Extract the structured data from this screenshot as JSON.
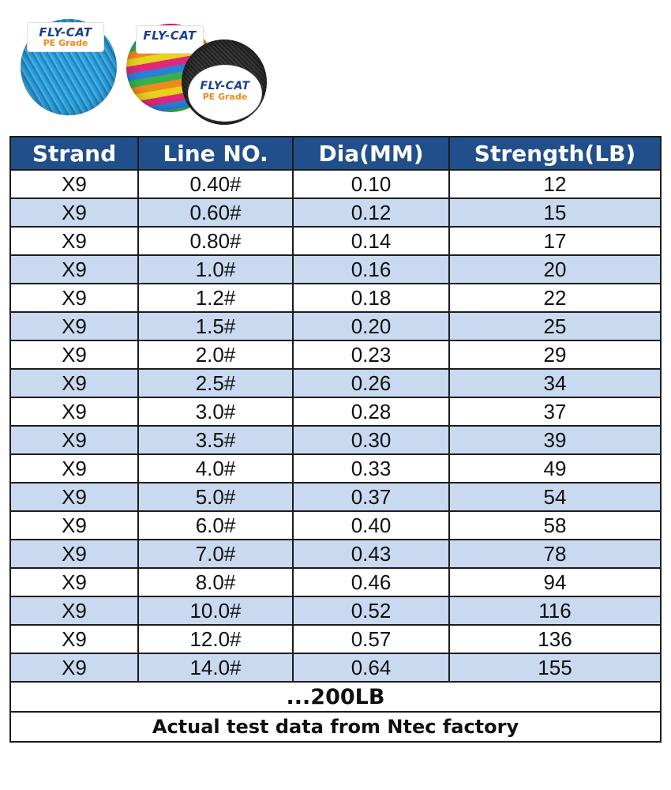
{
  "products": {
    "brand": "FLY-CAT",
    "grade": "PE Grade",
    "spools": [
      "blue-spool-icon",
      "multicolor-spool-icon",
      "black-spool-icon"
    ]
  },
  "table": {
    "headers": [
      "Strand",
      "Line NO.",
      "Dia(MM)",
      "Strength(LB)"
    ],
    "rows": [
      [
        "X9",
        "0.40#",
        "0.10",
        "12"
      ],
      [
        "X9",
        "0.60#",
        "0.12",
        "15"
      ],
      [
        "X9",
        "0.80#",
        "0.14",
        "17"
      ],
      [
        "X9",
        "1.0#",
        "0.16",
        "20"
      ],
      [
        "X9",
        "1.2#",
        "0.18",
        "22"
      ],
      [
        "X9",
        "1.5#",
        "0.20",
        "25"
      ],
      [
        "X9",
        "2.0#",
        "0.23",
        "29"
      ],
      [
        "X9",
        "2.5#",
        "0.26",
        "34"
      ],
      [
        "X9",
        "3.0#",
        "0.28",
        "37"
      ],
      [
        "X9",
        "3.5#",
        "0.30",
        "39"
      ],
      [
        "X9",
        "4.0#",
        "0.33",
        "49"
      ],
      [
        "X9",
        "5.0#",
        "0.37",
        "54"
      ],
      [
        "X9",
        "6.0#",
        "0.40",
        "58"
      ],
      [
        "X9",
        "7.0#",
        "0.43",
        "78"
      ],
      [
        "X9",
        "8.0#",
        "0.46",
        "94"
      ],
      [
        "X9",
        "10.0#",
        "0.52",
        "116"
      ],
      [
        "X9",
        "12.0#",
        "0.57",
        "136"
      ],
      [
        "X9",
        "14.0#",
        "0.64",
        "155"
      ]
    ],
    "footer_max": "...200LB",
    "footer_note": "Actual test data from Ntec factory"
  },
  "colors": {
    "header_bg": "#214f8b",
    "row_alt": "#c8d9f0"
  }
}
